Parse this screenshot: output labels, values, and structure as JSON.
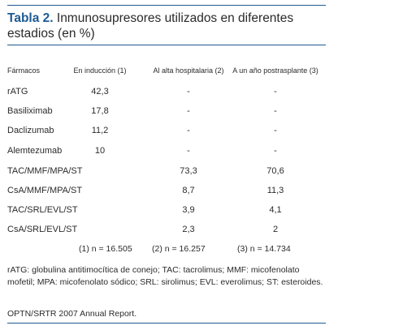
{
  "title": {
    "label": "Tabla 2.",
    "text": " Inmunosupresores utilizados en diferentes estadios (en %)"
  },
  "headers": [
    "Fármacos",
    "En inducción (1)",
    "Al alta hospitalaria (2)",
    "A un año postrasplante (3)"
  ],
  "rows": [
    {
      "drug": "rATG",
      "c1": "42,3",
      "c2": "-",
      "c3": "-"
    },
    {
      "drug": "Basiliximab",
      "c1": "17,8",
      "c2": "-",
      "c3": "-"
    },
    {
      "drug": "Daclizumab",
      "c1": "11,2",
      "c2": "-",
      "c3": "-"
    },
    {
      "drug": "Alemtezumab",
      "c1": "10",
      "c2": "-",
      "c3": "-"
    },
    {
      "drug": "TAC/MMF/MPA/ST",
      "c1": "",
      "c2": "73,3",
      "c3": "70,6"
    },
    {
      "drug": "CsA/MMF/MPA/ST",
      "c1": "",
      "c2": "8,7",
      "c3": "11,3"
    },
    {
      "drug": "TAC/SRL/EVL/ST",
      "c1": "",
      "c2": "3,9",
      "c3": "4,1"
    },
    {
      "drug": "CsA/SRL/EVL/ST",
      "c1": "",
      "c2": "2,3",
      "c3": "2"
    }
  ],
  "n_values": [
    "(1) n = 16.505",
    "(2) n = 16.257",
    "(3) n = 14.734"
  ],
  "footnote": "rATG: globulina antitimocítica de conejo; TAC: tacrolimus; MMF: micofenolato mofetil; MPA: micofenolato sódico; SRL: sirolimus; EVL: everolimus; ST: esteroides.",
  "source": "OPTN/SRTR 2007 Annual Report."
}
